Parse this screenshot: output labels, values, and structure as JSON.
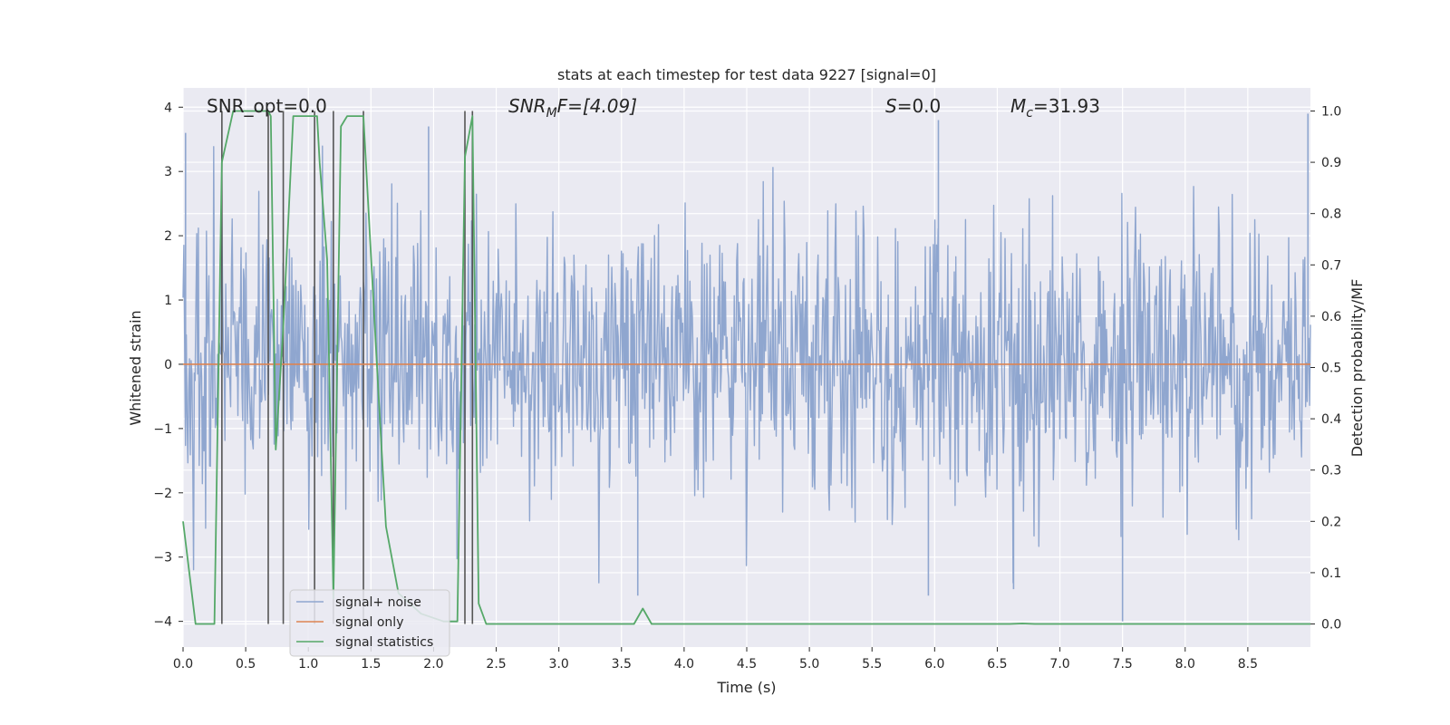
{
  "chart_data": {
    "type": "line",
    "title": "stats at each timestep for test data 9227 [signal=0]",
    "xlabel": "Time (s)",
    "ylabel": "Whitened strain",
    "y2label": "Detection probability/MF",
    "xlim": [
      0.0,
      9.0
    ],
    "ylim": [
      -4.4,
      4.3
    ],
    "y2lim": [
      -0.045,
      1.045
    ],
    "xticks": [
      "0.0",
      "0.5",
      "1.0",
      "1.5",
      "2.0",
      "2.5",
      "3.0",
      "3.5",
      "4.0",
      "4.5",
      "5.0",
      "5.5",
      "6.0",
      "6.5",
      "7.0",
      "7.5",
      "8.0",
      "8.5"
    ],
    "yticks": [
      "4",
      "3",
      "2",
      "1",
      "0",
      "−1",
      "−2",
      "−3",
      "−4"
    ],
    "y2ticks": [
      "1.0",
      "0.9",
      "0.8",
      "0.7",
      "0.6",
      "0.5",
      "0.4",
      "0.3",
      "0.2",
      "0.1",
      "0.0"
    ],
    "annotations": {
      "snr_opt": "SNR_opt=0.0",
      "snr_mf_label": "SNR",
      "snr_mf_sub": "M",
      "snr_mf_rest": "F=[4.09]",
      "s_label": "S",
      "s_rest": "=0.0",
      "mc_label": "M",
      "mc_sub": "c",
      "mc_rest": "=31.93"
    },
    "legend": {
      "position": "lower-left",
      "entries": [
        "signal+ noise",
        "signal only",
        "signal statistics"
      ]
    },
    "series": [
      {
        "name": "signal+ noise",
        "color": "#8fa6cf",
        "description": "whitened noise, ~N(0,1)",
        "peaks_max": [
          [
            0.02,
            3.6
          ],
          [
            6.03,
            3.8
          ],
          [
            1.96,
            3.7
          ],
          [
            8.98,
            3.9
          ]
        ],
        "peaks_min": [
          [
            3.63,
            -3.6
          ],
          [
            7.5,
            -4.0
          ],
          [
            5.95,
            -3.6
          ],
          [
            6.63,
            -3.5
          ]
        ]
      },
      {
        "name": "signal only",
        "color": "#dd8452",
        "x": [
          0.0,
          9.0
        ],
        "y": [
          0.0,
          0.0
        ]
      },
      {
        "name": "signal statistics",
        "color": "#55a868",
        "axis": "right",
        "x": [
          0.0,
          0.05,
          0.1,
          0.25,
          0.31,
          0.4,
          0.68,
          0.7,
          0.74,
          0.8,
          0.88,
          1.07,
          1.09,
          1.15,
          1.2,
          1.26,
          1.31,
          1.44,
          1.56,
          1.62,
          1.72,
          1.9,
          2.08,
          2.19,
          2.25,
          2.31,
          2.36,
          2.42,
          3.6,
          3.67,
          3.74,
          3.9,
          4.0,
          6.6,
          6.7,
          6.8,
          7.8,
          8.8,
          9.0
        ],
        "y": [
          0.2,
          0.1,
          0.0,
          0.0,
          0.9,
          1.0,
          1.0,
          0.99,
          0.34,
          0.58,
          0.99,
          0.99,
          0.9,
          0.71,
          0.05,
          0.97,
          0.99,
          0.99,
          0.45,
          0.19,
          0.06,
          0.02,
          0.005,
          0.005,
          0.91,
          0.99,
          0.04,
          0.0,
          0.0,
          0.03,
          0.0,
          0.0,
          0.0,
          0.0,
          0.001,
          0.0,
          0.0,
          0.0,
          0.0
        ]
      },
      {
        "name": "detection markers",
        "color": "#555555",
        "x": [
          0.31,
          0.68,
          0.8,
          1.05,
          1.2,
          1.44,
          2.25,
          2.31
        ]
      }
    ]
  }
}
